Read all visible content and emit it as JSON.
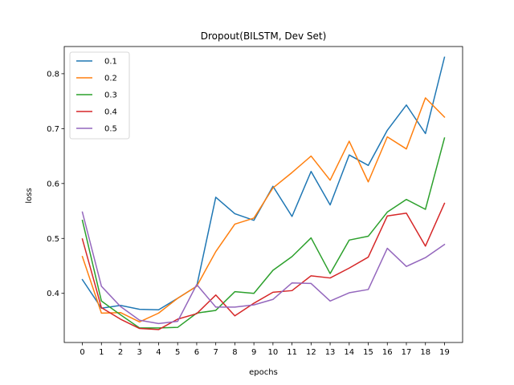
{
  "chart_data": {
    "type": "line",
    "title": "Dropout(BILSTM, Dev Set)",
    "xlabel": "epochs",
    "ylabel": "loss",
    "x": [
      0,
      1,
      2,
      3,
      4,
      5,
      6,
      7,
      8,
      9,
      10,
      11,
      12,
      13,
      14,
      15,
      16,
      17,
      18,
      19
    ],
    "xticks": [
      "0",
      "1",
      "2",
      "3",
      "4",
      "5",
      "6",
      "7",
      "8",
      "9",
      "10",
      "11",
      "12",
      "13",
      "14",
      "15",
      "16",
      "17",
      "18",
      "19"
    ],
    "yticks": [
      0.4,
      0.5,
      0.6,
      0.7,
      0.8
    ],
    "ytick_labels": [
      "0.4",
      "0.5",
      "0.6",
      "0.7",
      "0.8"
    ],
    "xlim": [
      -0.95,
      19.95
    ],
    "ylim": [
      0.3105,
      0.8495
    ],
    "grid": false,
    "legend_position": "upper-left",
    "series": [
      {
        "name": "0.1",
        "color": "#1f77b4",
        "values": [
          0.425,
          0.373,
          0.378,
          0.371,
          0.37,
          0.391,
          0.413,
          0.575,
          0.545,
          0.533,
          0.595,
          0.54,
          0.622,
          0.561,
          0.652,
          0.633,
          0.697,
          0.743,
          0.691,
          0.83
        ]
      },
      {
        "name": "0.2",
        "color": "#ff7f0e",
        "values": [
          0.467,
          0.364,
          0.365,
          0.348,
          0.364,
          0.391,
          0.413,
          0.476,
          0.526,
          0.537,
          0.592,
          0.62,
          0.65,
          0.606,
          0.677,
          0.603,
          0.685,
          0.663,
          0.756,
          0.721
        ]
      },
      {
        "name": "0.3",
        "color": "#2ca02c",
        "values": [
          0.533,
          0.386,
          0.361,
          0.337,
          0.337,
          0.338,
          0.364,
          0.369,
          0.403,
          0.4,
          0.442,
          0.467,
          0.501,
          0.436,
          0.497,
          0.504,
          0.548,
          0.571,
          0.553,
          0.683
        ]
      },
      {
        "name": "0.4",
        "color": "#d62728",
        "values": [
          0.499,
          0.374,
          0.353,
          0.336,
          0.334,
          0.353,
          0.363,
          0.397,
          0.359,
          0.382,
          0.402,
          0.405,
          0.432,
          0.428,
          0.446,
          0.466,
          0.541,
          0.546,
          0.486,
          0.564
        ]
      },
      {
        "name": "0.5",
        "color": "#9467bd",
        "values": [
          0.548,
          0.413,
          0.376,
          0.351,
          0.345,
          0.349,
          0.416,
          0.375,
          0.375,
          0.379,
          0.389,
          0.419,
          0.418,
          0.386,
          0.401,
          0.407,
          0.482,
          0.449,
          0.465,
          0.489
        ]
      }
    ]
  }
}
